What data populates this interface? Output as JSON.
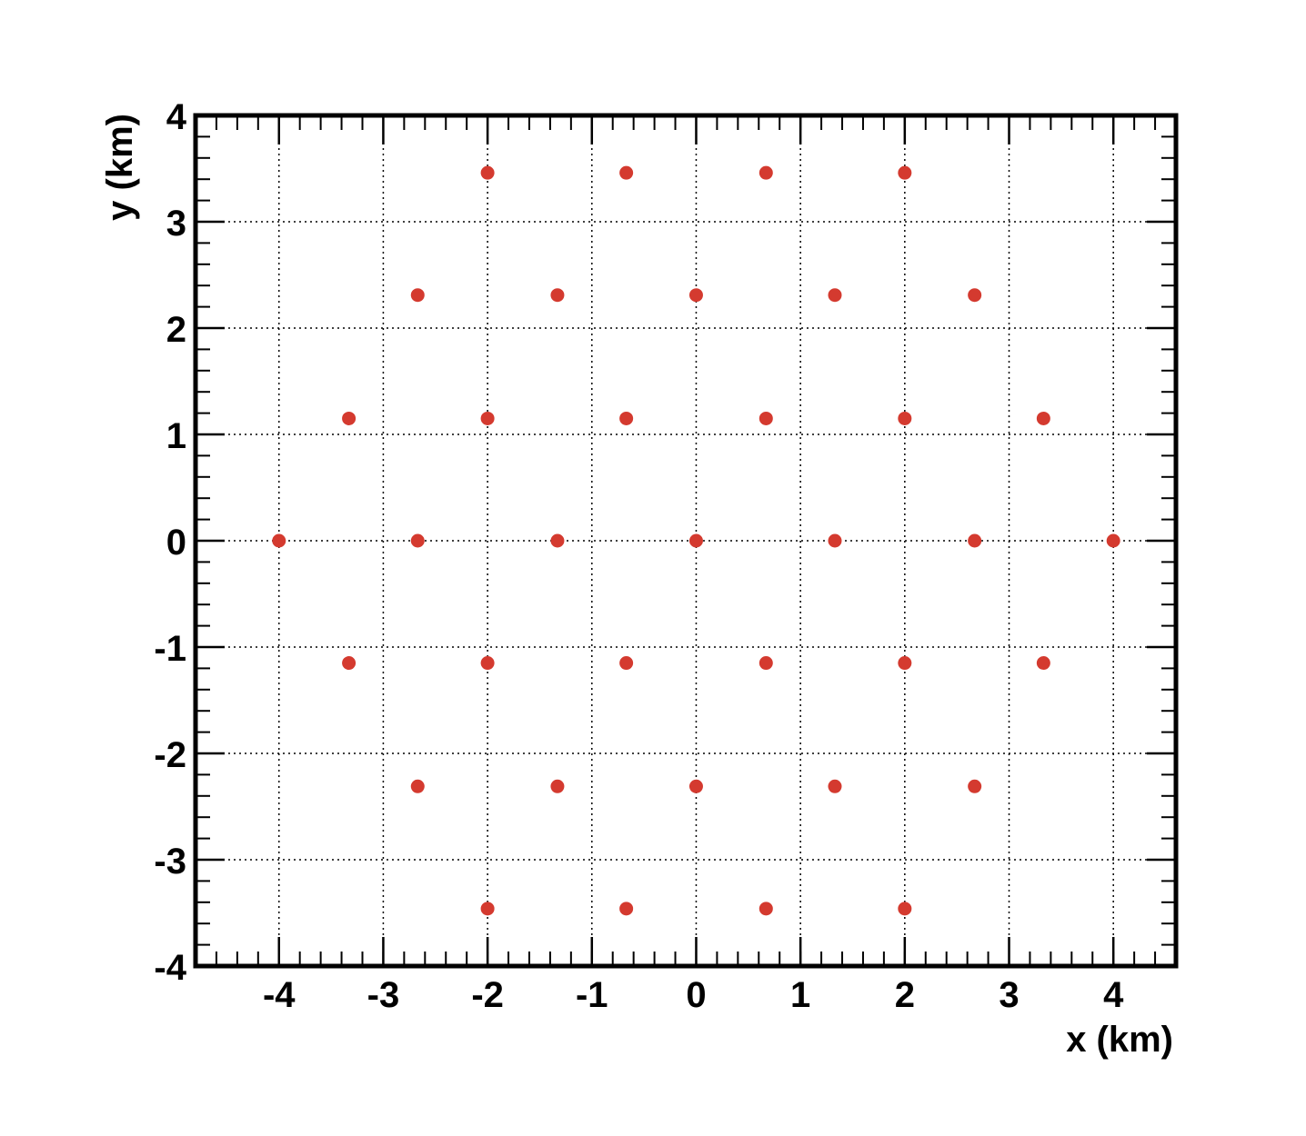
{
  "chart_data": {
    "type": "scatter",
    "xlabel": "x (km)",
    "ylabel": "y (km)",
    "xlim": [
      -4.8,
      4.6
    ],
    "ylim": [
      -4,
      4
    ],
    "xticks": [
      -4,
      -3,
      -2,
      -1,
      0,
      1,
      2,
      3,
      4
    ],
    "yticks": [
      -4,
      -3,
      -2,
      -1,
      0,
      1,
      2,
      3,
      4
    ],
    "xtick_labels": [
      "-4",
      "-3",
      "-2",
      "-1",
      "0",
      "1",
      "2",
      "3",
      "4"
    ],
    "ytick_labels": [
      "-4",
      "-3",
      "-2",
      "-1",
      "0",
      "1",
      "2",
      "3",
      "4"
    ],
    "grid": true,
    "grid_style": "dotted",
    "marker_color": "#d43a2f",
    "series": [
      {
        "x": [
          -2.0,
          -0.67,
          0.67,
          2.0,
          -2.67,
          -1.33,
          0.0,
          1.33,
          2.67,
          -3.33,
          -2.0,
          -0.67,
          0.67,
          2.0,
          3.33,
          -4.0,
          -2.67,
          -1.33,
          0.0,
          1.33,
          2.67,
          4.0,
          -3.33,
          -2.0,
          -0.67,
          0.67,
          2.0,
          3.33,
          -2.67,
          -1.33,
          0.0,
          1.33,
          2.67,
          -2.0,
          -0.67,
          0.67,
          2.0
        ],
        "y": [
          3.46,
          3.46,
          3.46,
          3.46,
          2.31,
          2.31,
          2.31,
          2.31,
          2.31,
          1.15,
          1.15,
          1.15,
          1.15,
          1.15,
          1.15,
          0.0,
          0.0,
          0.0,
          0.0,
          0.0,
          0.0,
          0.0,
          -1.15,
          -1.15,
          -1.15,
          -1.15,
          -1.15,
          -1.15,
          -2.31,
          -2.31,
          -2.31,
          -2.31,
          -2.31,
          -3.46,
          -3.46,
          -3.46,
          -3.46
        ]
      }
    ]
  }
}
